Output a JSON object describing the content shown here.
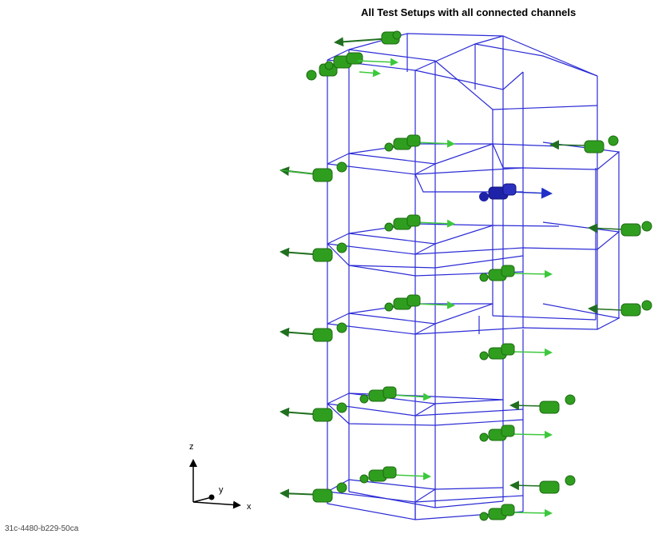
{
  "title": "All Test Setups with all connected channels",
  "footer_id": "31c-4480-b229-50ca",
  "axes": {
    "z": "z",
    "y": "y",
    "x": "x"
  },
  "colors": {
    "frame": "#2b2bd6",
    "sensor": "#2f9e1f",
    "sensor_dark": "#1d6b12",
    "arrow": "#3cc83c",
    "arrow_dark": "#1f6f1f",
    "selected": "#1e22a8"
  }
}
